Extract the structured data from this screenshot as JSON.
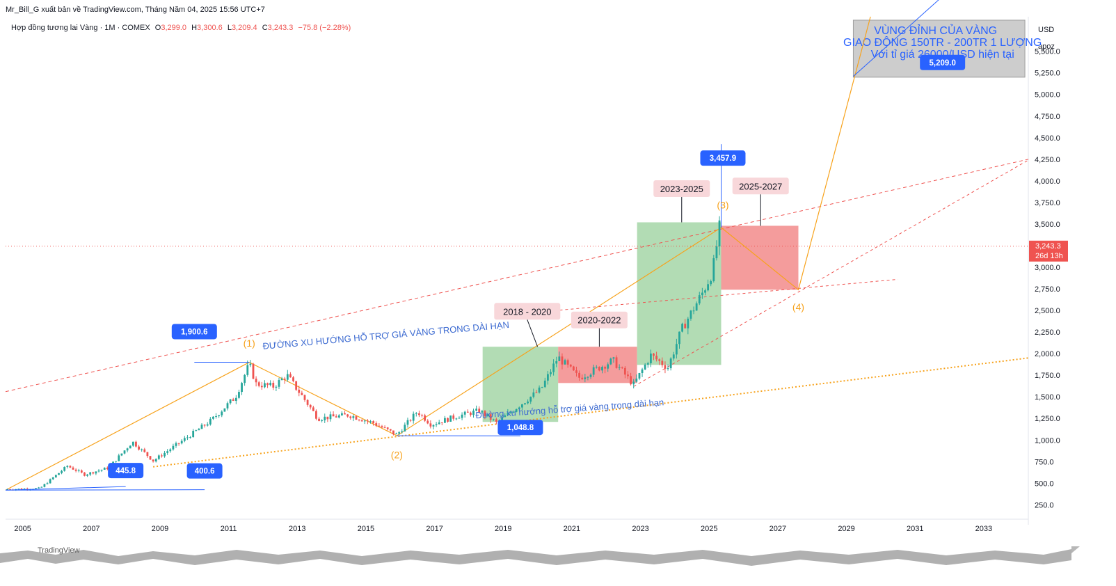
{
  "header": {
    "publisher": "Mr_Bill_G xuất bản về TradingView.com, Tháng Năm 04, 2025 15:56 UTC+7",
    "symbol": "Hợp đồng tương lai Vàng · 1M · COMEX",
    "o_label": "O",
    "o_value": "3,299.0",
    "h_label": "H",
    "h_value": "3,300.6",
    "l_label": "L",
    "l_value": "3,209.4",
    "c_label": "C",
    "c_value": "3,243.3",
    "change": "−75.8 (−2.28%)"
  },
  "price_scale": {
    "currency": "USD",
    "mode": "apoz",
    "last_price": "3,243.3",
    "countdown": "26d 13h"
  },
  "watermark": "TradingView",
  "colors": {
    "up": "#26a69a",
    "down": "#ef5350",
    "label_blue": "#2962ff",
    "orange": "#f7a21b",
    "green_zone": "#a5d6a7",
    "red_zone": "#f28b8b",
    "gray_zone": "#c8c8c8"
  },
  "chart_data": {
    "type": "candlestick",
    "interval": "1M",
    "x_ticks": [
      "2005",
      "2007",
      "2009",
      "2011",
      "2013",
      "2015",
      "2017",
      "2019",
      "2021",
      "2023",
      "2025",
      "2027",
      "2029",
      "2031",
      "2033"
    ],
    "y_ticks": [
      "250.0",
      "500.0",
      "750.0",
      "1,000.0",
      "1,250.0",
      "1,500.0",
      "1,750.0",
      "2,000.0",
      "2,250.0",
      "2,500.0",
      "2,750.0",
      "3,000.0",
      "3,250.0",
      "3,500.0",
      "3,750.0",
      "4,000.0",
      "4,250.0",
      "4,500.0",
      "4,750.0",
      "5,000.0",
      "5,250.0",
      "5,500.0"
    ],
    "ylim": [
      100,
      5900
    ],
    "xlim": [
      2004.5,
      2034.3
    ],
    "price_anchors": [
      [
        2004.5,
        430
      ],
      [
        2005.5,
        440
      ],
      [
        2006.3,
        700
      ],
      [
        2006.8,
        600
      ],
      [
        2007.5,
        680
      ],
      [
        2008.2,
        980
      ],
      [
        2008.8,
        760
      ],
      [
        2009.5,
        950
      ],
      [
        2010.5,
        1230
      ],
      [
        2011.2,
        1500
      ],
      [
        2011.6,
        1880
      ],
      [
        2011.8,
        1650
      ],
      [
        2012.3,
        1620
      ],
      [
        2012.7,
        1750
      ],
      [
        2013.3,
        1420
      ],
      [
        2013.6,
        1250
      ],
      [
        2014.5,
        1290
      ],
      [
        2015.2,
        1200
      ],
      [
        2015.9,
        1060
      ],
      [
        2016.5,
        1330
      ],
      [
        2016.9,
        1180
      ],
      [
        2017.6,
        1270
      ],
      [
        2018.3,
        1340
      ],
      [
        2018.8,
        1200
      ],
      [
        2019.5,
        1410
      ],
      [
        2020.1,
        1590
      ],
      [
        2020.6,
        1960
      ],
      [
        2021.2,
        1720
      ],
      [
        2021.6,
        1800
      ],
      [
        2022.2,
        1920
      ],
      [
        2022.8,
        1640
      ],
      [
        2023.3,
        1980
      ],
      [
        2023.8,
        1840
      ],
      [
        2024.2,
        2280
      ],
      [
        2024.8,
        2700
      ],
      [
        2025.1,
        2950
      ],
      [
        2025.3,
        3457
      ],
      [
        2025.35,
        3243
      ]
    ],
    "annotations": {
      "zone_top_text": [
        "VÙNG ĐỈNH CỦA VÀNG",
        "GIAO ĐỘNG 150TR - 200TR 1 LƯỢNG",
        "Với tỉ giá 26000/USD hiện tại"
      ],
      "price_labels": [
        {
          "text": "1,900.6",
          "x": 2010.0,
          "y": 1900.6
        },
        {
          "text": "1,048.8",
          "x": 2019.5,
          "y": 1048.8
        },
        {
          "text": "445.8",
          "x": 2008.0,
          "y": 445.8
        },
        {
          "text": "400.6",
          "x": 2010.3,
          "y": 400.6
        },
        {
          "text": "3,457.9",
          "x": 2025.4,
          "y": 3457.9
        },
        {
          "text": "5,209.0",
          "x": 2031.8,
          "y": 5209.0
        }
      ],
      "period_labels": [
        "2018 - 2020",
        "2020-2022",
        "2023-2025",
        "2025-2027"
      ],
      "waves": [
        "(1)",
        "(2)",
        "(3)",
        "(4)"
      ],
      "trend_upper": "ĐƯỜNG XU HƯỚNG HỖ TRỢ GIÁ VÀNG TRONG DÀI HẠN",
      "trend_lower": "Đường xu hướng hỗ trợ giá vàng trong dài hạn",
      "zones": [
        {
          "label": "2018 - 2020",
          "x0": 2018.4,
          "x1": 2020.6,
          "y0": 1210,
          "y1": 2080,
          "color": "green"
        },
        {
          "label": "2020-2022",
          "x0": 2020.6,
          "x1": 2022.9,
          "y0": 1660,
          "y1": 2080,
          "color": "red"
        },
        {
          "label": "2023-2025",
          "x0": 2022.9,
          "x1": 2025.35,
          "y0": 1870,
          "y1": 3520,
          "color": "green"
        },
        {
          "label": "2025-2027",
          "x0": 2025.35,
          "x1": 2027.6,
          "y0": 2740,
          "y1": 3480,
          "color": "red"
        },
        {
          "label": "top",
          "x0": 2029.2,
          "x1": 2034.2,
          "y0": 5200,
          "y1": 5860,
          "color": "gray"
        }
      ]
    }
  }
}
